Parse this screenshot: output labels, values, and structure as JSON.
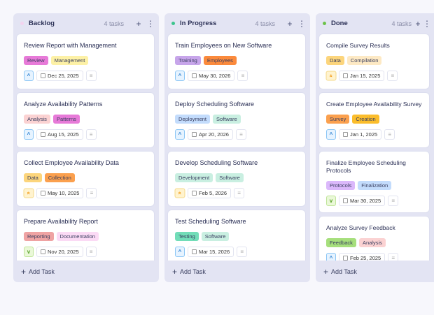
{
  "columns": [
    {
      "title": "Backlog",
      "count": "4 tasks",
      "dot": "#f3d3ef",
      "add_label": "Add Task",
      "cards": [
        {
          "title": "Review Report with Management",
          "tags": [
            {
              "label": "Review",
              "color": "#e77ad8"
            },
            {
              "label": "Management",
              "color": "#fdf1a6"
            }
          ],
          "priority": "medium",
          "date": "Dec 25, 2025"
        },
        {
          "title": "Analyze Availability Patterns",
          "tags": [
            {
              "label": "Analysis",
              "color": "#fbd2d2"
            },
            {
              "label": "Patterns",
              "color": "#e77ad8"
            }
          ],
          "priority": "medium",
          "date": "Aug 15, 2025"
        },
        {
          "title": "Collect Employee Availability Data",
          "tags": [
            {
              "label": "Data",
              "color": "#fcd57c"
            },
            {
              "label": "Collection",
              "color": "#fba04e"
            }
          ],
          "priority": "high",
          "date": "May 10, 2025"
        },
        {
          "title": "Prepare Availability Report",
          "tags": [
            {
              "label": "Reporting",
              "color": "#efa3a3"
            },
            {
              "label": "Documentation",
              "color": "#fbdaf5"
            }
          ],
          "priority": "low",
          "date": "Nov 20, 2025"
        }
      ]
    },
    {
      "title": "In Progress",
      "count": "4 tasks",
      "dot": "#3cc48d",
      "add_label": "Add Task",
      "cards": [
        {
          "title": "Train Employees on New Software",
          "tags": [
            {
              "label": "Training",
              "color": "#c7a5ea"
            },
            {
              "label": "Employees",
              "color": "#fb8a3c"
            }
          ],
          "priority": "medium",
          "date": "May 30, 2026"
        },
        {
          "title": "Deploy Scheduling Software",
          "tags": [
            {
              "label": "Deployment",
              "color": "#c3dcfc"
            },
            {
              "label": "Software",
              "color": "#c9efe1"
            }
          ],
          "priority": "medium",
          "date": "Apr 20, 2026"
        },
        {
          "title": "Develop Scheduling Software",
          "tags": [
            {
              "label": "Development",
              "color": "#c9efe1"
            },
            {
              "label": "Software",
              "color": "#c9efe1"
            }
          ],
          "priority": "high",
          "date": "Feb 5, 2026"
        },
        {
          "title": "Test Scheduling Software",
          "tags": [
            {
              "label": "Testing",
              "color": "#72ddb8"
            },
            {
              "label": "Software",
              "color": "#c9efe1"
            }
          ],
          "priority": "medium",
          "date": "Mar 15, 2026"
        }
      ]
    },
    {
      "title": "Done",
      "count": "4 tasks",
      "dot": "#6cc24a",
      "add_label": "Add Task",
      "cards": [
        {
          "title": "Compile Survey Results",
          "tags": [
            {
              "label": "Data",
              "color": "#fcd57c"
            },
            {
              "label": "Compilation",
              "color": "#fde9c4"
            }
          ],
          "priority": "high",
          "date": "Jan 15, 2025"
        },
        {
          "title": "Create Employee Availability Survey",
          "tags": [
            {
              "label": "Survey",
              "color": "#fba04e"
            },
            {
              "label": "Creation",
              "color": "#fbbd2c"
            }
          ],
          "priority": "medium",
          "date": "Jan 1, 2025"
        },
        {
          "title": "Finalize Employee Scheduling Protocols",
          "tags": [
            {
              "label": "Protocols",
              "color": "#dbb8fb"
            },
            {
              "label": "Finalization",
              "color": "#c3dcfc"
            }
          ],
          "priority": "low",
          "date": "Mar 30, 2025"
        },
        {
          "title": "Analyze Survey Feedback",
          "tags": [
            {
              "label": "Feedback",
              "color": "#a6df7c"
            },
            {
              "label": "Analysis",
              "color": "#fbd2d2"
            }
          ],
          "priority": "medium",
          "date": "Feb 25, 2025"
        }
      ]
    }
  ],
  "priority_styles": {
    "medium": {
      "glyph": "^",
      "bg": "#e6f3ff",
      "border": "#8cc6f5",
      "fg": "#2a7fd0"
    },
    "high": {
      "glyph": "«",
      "bg": "#fff3cf",
      "border": "#f5d98a",
      "fg": "#f39a14"
    },
    "low": {
      "glyph": "v",
      "bg": "#eaf8d8",
      "border": "#bfe59a",
      "fg": "#5aa22a"
    }
  }
}
